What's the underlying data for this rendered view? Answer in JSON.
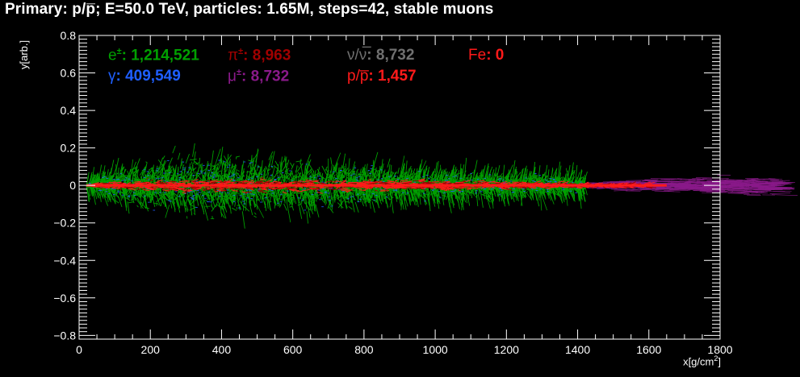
{
  "title": "Primary: p/p̅; E=50.0 TeV, particles: 1.65M, steps=42, stable muons",
  "chart_data": {
    "type": "scatter",
    "title": "Primary: p/p̅; E=50.0 TeV, particles: 1.65M, steps=42, stable muons",
    "xlabel": "x[g/cm",
    "xlabel_sup": "2",
    "xlabel_end": "]",
    "ylabel": "y[arb.]",
    "xlim": [
      0,
      1800
    ],
    "ylim": [
      -0.82,
      0.8
    ],
    "x_ticks": [
      0,
      200,
      400,
      600,
      800,
      1000,
      1200,
      1400,
      1600,
      1800
    ],
    "x_tick_labels": [
      "0",
      "200",
      "400",
      "600",
      "800",
      "1000",
      "1200",
      "1400",
      "1600",
      "1800"
    ],
    "y_ticks": [
      -0.8,
      -0.6,
      -0.4,
      -0.2,
      0,
      0.2,
      0.4,
      0.6,
      0.8
    ],
    "y_tick_labels": [
      "−0.8",
      "−0.6",
      "−0.4",
      "−0.2",
      "0",
      "0.2",
      "0.4",
      "0.6",
      "0.8"
    ],
    "grid": false,
    "legend_placement": "top-left",
    "series": [
      {
        "key": "electrons",
        "symbol": "e",
        "sup": "±",
        "value": "1,214,521",
        "color": "#00a000",
        "count": 1214521
      },
      {
        "key": "pions",
        "symbol": "π",
        "sup": "±",
        "value": "8,963",
        "color": "#a00000",
        "count": 8963
      },
      {
        "key": "neutrinos",
        "symbol": "ν/ν̅",
        "sup": "",
        "value": "8,732",
        "color": "#707070",
        "count": 8732
      },
      {
        "key": "iron",
        "symbol": "Fe",
        "sup": "",
        "value": "0",
        "color": "#ff1a1a",
        "count": 0
      },
      {
        "key": "gammas",
        "symbol": "γ",
        "sup": "",
        "value": "409,549",
        "color": "#1f5fff",
        "count": 409549
      },
      {
        "key": "muons",
        "symbol": "μ",
        "sup": "±",
        "value": "8,732",
        "color": "#8a1a8a",
        "count": 8732
      },
      {
        "key": "protons",
        "symbol": "p/p̅",
        "sup": "",
        "value": "1,457",
        "color": "#ff1a1a",
        "count": 1457
      }
    ],
    "shower_envelope": {
      "electrons": [
        [
          20,
          0.01
        ],
        [
          60,
          0.06
        ],
        [
          100,
          0.12
        ],
        [
          200,
          0.18
        ],
        [
          300,
          0.22
        ],
        [
          400,
          0.22
        ],
        [
          500,
          0.2
        ],
        [
          600,
          0.2
        ],
        [
          700,
          0.18
        ],
        [
          800,
          0.14
        ],
        [
          900,
          0.12
        ],
        [
          1000,
          0.1
        ],
        [
          1100,
          0.09
        ],
        [
          1200,
          0.08
        ],
        [
          1300,
          0.07
        ],
        [
          1400,
          0.06
        ]
      ],
      "hadrons": [
        [
          20,
          0.005
        ],
        [
          100,
          0.03
        ],
        [
          300,
          0.05
        ],
        [
          600,
          0.05
        ],
        [
          900,
          0.04
        ],
        [
          1200,
          0.03
        ],
        [
          1400,
          0.02
        ],
        [
          1600,
          0.015
        ]
      ],
      "muons": [
        [
          1300,
          0.01
        ],
        [
          1400,
          0.02
        ],
        [
          1500,
          0.04
        ],
        [
          1600,
          0.05
        ],
        [
          1700,
          0.06
        ],
        [
          1800,
          0.07
        ],
        [
          1900,
          0.08
        ]
      ]
    }
  }
}
